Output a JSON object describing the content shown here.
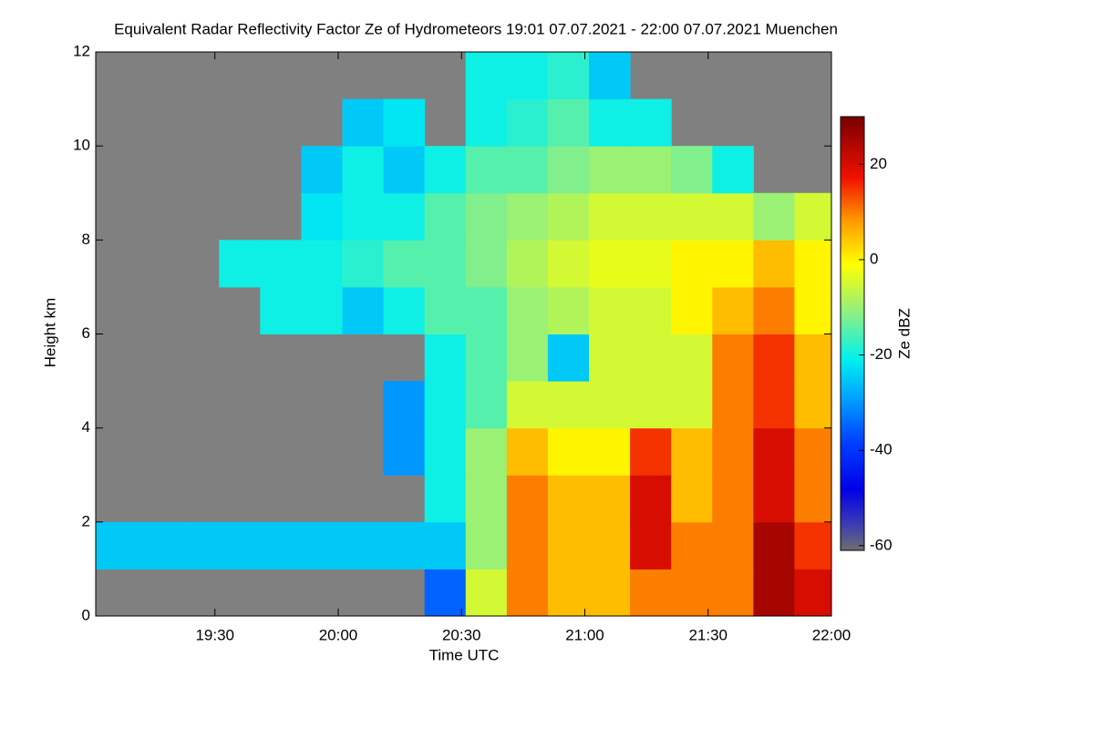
{
  "chart_data": {
    "type": "heatmap",
    "title": "Equivalent Radar Reflectivity Factor Ze of Hydrometeors   19:01 07.07.2021 - 22:00 07.07.2021 Muenchen",
    "x_label": "Time UTC",
    "y_label": "Height km",
    "x": [
      "19:06",
      "19:16",
      "19:26",
      "19:36",
      "19:46",
      "19:56",
      "20:06",
      "20:16",
      "20:26",
      "20:36",
      "20:46",
      "20:56",
      "21:06",
      "21:16",
      "21:26",
      "21:36",
      "21:46",
      "21:56"
    ],
    "y": [
      0.5,
      1.5,
      2.5,
      3.5,
      4.5,
      5.5,
      6.5,
      7.5,
      8.5,
      9.5,
      10.5,
      11.5
    ],
    "z": [
      [
        null,
        null,
        null,
        null,
        null,
        null,
        null,
        null,
        -35,
        -5,
        10,
        5,
        5,
        10,
        10,
        10,
        25,
        20
      ],
      [
        -25,
        -25,
        -25,
        -25,
        -25,
        -25,
        -25,
        -25,
        -25,
        -10,
        10,
        5,
        5,
        20,
        10,
        10,
        25,
        15
      ],
      [
        null,
        null,
        null,
        null,
        null,
        null,
        null,
        null,
        -20,
        -10,
        10,
        5,
        5,
        20,
        5,
        10,
        20,
        10
      ],
      [
        null,
        null,
        null,
        null,
        null,
        null,
        null,
        -30,
        -20,
        -10,
        5,
        0,
        0,
        15,
        5,
        10,
        20,
        10
      ],
      [
        null,
        null,
        null,
        null,
        null,
        null,
        null,
        -30,
        -20,
        -15,
        -5,
        -5,
        -5,
        -5,
        -5,
        10,
        15,
        5
      ],
      [
        null,
        null,
        null,
        null,
        null,
        null,
        null,
        null,
        -20,
        -15,
        -10,
        -25,
        -5,
        -5,
        -5,
        10,
        15,
        5
      ],
      [
        null,
        null,
        null,
        null,
        -20,
        -20,
        -25,
        -20,
        -15,
        -15,
        -10,
        -8,
        -5,
        -5,
        0,
        5,
        10,
        0
      ],
      [
        null,
        null,
        null,
        -20,
        -20,
        -20,
        -18,
        -15,
        -15,
        -12,
        -8,
        -5,
        -3,
        -3,
        0,
        0,
        5,
        0
      ],
      [
        null,
        null,
        null,
        null,
        null,
        -22,
        -20,
        -20,
        -15,
        -12,
        -10,
        -8,
        -5,
        -5,
        -5,
        -5,
        -10,
        -5
      ],
      [
        null,
        null,
        null,
        null,
        null,
        -25,
        -20,
        -25,
        -20,
        -15,
        -15,
        -12,
        -10,
        -10,
        -12,
        -20,
        null,
        null
      ],
      [
        null,
        null,
        null,
        null,
        null,
        null,
        -25,
        -22,
        null,
        -20,
        -18,
        -15,
        -20,
        -20,
        null,
        null,
        null,
        null
      ],
      [
        null,
        null,
        null,
        null,
        null,
        null,
        null,
        null,
        null,
        -20,
        -20,
        -18,
        -25,
        null,
        null,
        null,
        null,
        null
      ]
    ],
    "xlim": [
      "19:01",
      "22:00"
    ],
    "xticks": [
      "19:30",
      "20:00",
      "20:30",
      "21:00",
      "21:30",
      "22:00"
    ],
    "ylim": [
      0,
      12
    ],
    "yticks": [
      0,
      2,
      4,
      6,
      8,
      10,
      12
    ],
    "colorbar": {
      "label": "Ze dBZ",
      "lim": [
        -61,
        30
      ],
      "ticks": [
        -60,
        -40,
        -20,
        0,
        20
      ]
    }
  }
}
